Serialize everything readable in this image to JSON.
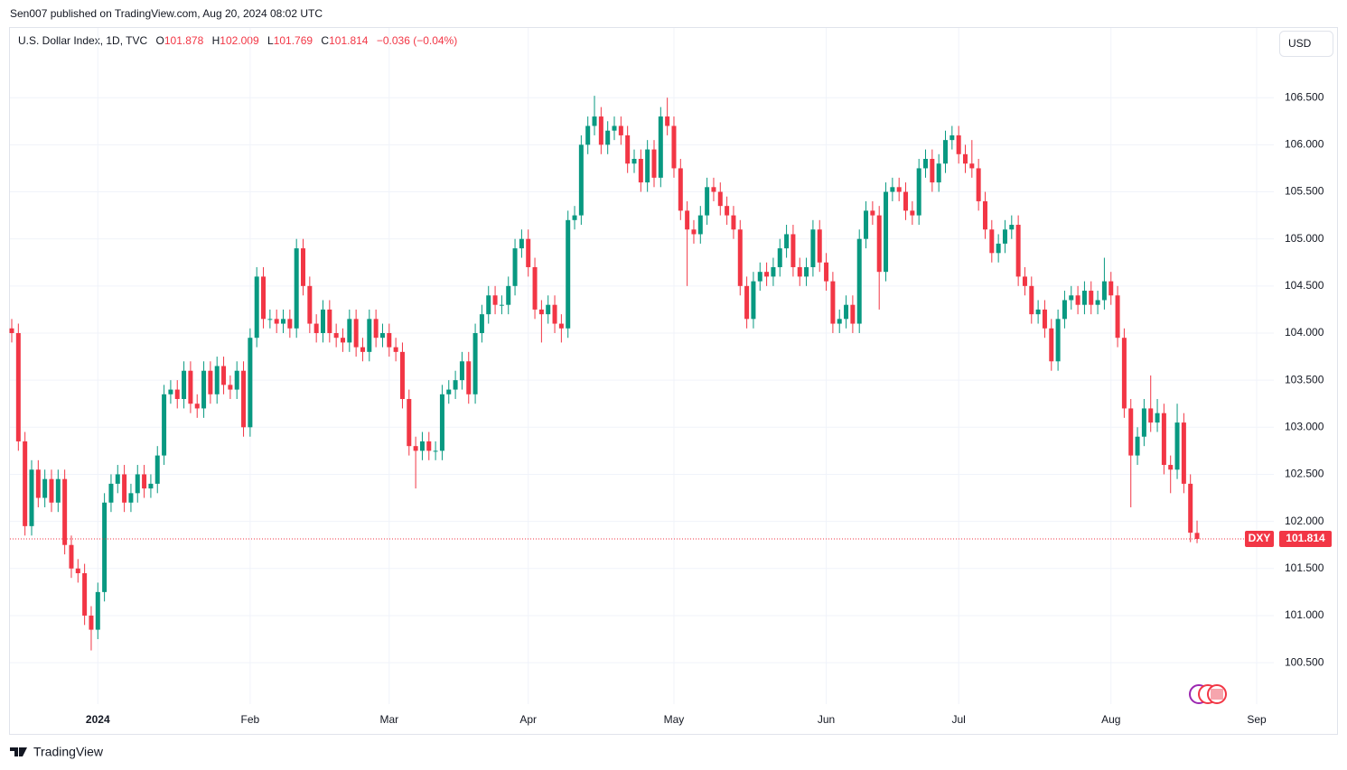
{
  "page": {
    "published": "Sen007 published on TradingView.com, Aug 20, 2024 08:02 UTC",
    "brand": "TradingView",
    "currency": "USD"
  },
  "chart_data": {
    "type": "candlestick",
    "header": {
      "symbol": "U.S. Dollar Index, 1D, TVC",
      "ohlc": [
        {
          "key": "O",
          "value": "101.878"
        },
        {
          "key": "H",
          "value": "102.009"
        },
        {
          "key": "L",
          "value": "101.769"
        },
        {
          "key": "C",
          "value": "101.814"
        }
      ],
      "change": "−0.036 (−0.04%)"
    },
    "last_symbol": "DXY",
    "up_color": "#089981",
    "down_color": "#f23645",
    "grid": true,
    "ylim": [
      100.06,
      107.24
    ],
    "yticks": [
      {
        "value": 100.5,
        "label": "100.500"
      },
      {
        "value": 101,
        "label": "101.000"
      },
      {
        "value": 101.5,
        "label": "101.500"
      },
      {
        "value": 102,
        "label": "102.000"
      },
      {
        "value": 102.5,
        "label": "102.500"
      },
      {
        "value": 103,
        "label": "103.000"
      },
      {
        "value": 103.5,
        "label": "103.500"
      },
      {
        "value": 104,
        "label": "104.000"
      },
      {
        "value": 104.5,
        "label": "104.500"
      },
      {
        "value": 105,
        "label": "105.000"
      },
      {
        "value": 105.5,
        "label": "105.500"
      },
      {
        "value": 106,
        "label": "106.000"
      },
      {
        "value": 106.5,
        "label": "106.500"
      }
    ],
    "categories": [
      null,
      null,
      null,
      null,
      null,
      null,
      null,
      null,
      null,
      null,
      null,
      null,
      null,
      "2024",
      null,
      null,
      null,
      null,
      null,
      null,
      null,
      null,
      null,
      null,
      null,
      null,
      null,
      null,
      null,
      null,
      null,
      null,
      null,
      null,
      null,
      null,
      "Feb",
      null,
      null,
      null,
      null,
      null,
      null,
      null,
      null,
      null,
      null,
      null,
      null,
      null,
      null,
      null,
      null,
      null,
      null,
      null,
      null,
      "Mar",
      null,
      null,
      null,
      null,
      null,
      null,
      null,
      null,
      null,
      null,
      null,
      null,
      null,
      null,
      null,
      null,
      null,
      null,
      null,
      null,
      "Apr",
      null,
      null,
      null,
      null,
      null,
      null,
      null,
      null,
      null,
      null,
      null,
      null,
      null,
      null,
      null,
      null,
      null,
      null,
      null,
      null,
      null,
      "May",
      null,
      null,
      null,
      null,
      null,
      null,
      null,
      null,
      null,
      null,
      null,
      null,
      null,
      null,
      null,
      null,
      null,
      null,
      null,
      null,
      null,
      null,
      "Jun",
      null,
      null,
      null,
      null,
      null,
      null,
      null,
      null,
      null,
      null,
      null,
      null,
      null,
      null,
      null,
      null,
      null,
      null,
      null,
      "Jul",
      null,
      null,
      null,
      null,
      null,
      null,
      null,
      null,
      null,
      null,
      null,
      null,
      null,
      null,
      null,
      null,
      null,
      null,
      null,
      null,
      null,
      null,
      "Aug",
      null,
      null,
      null,
      null,
      null,
      null,
      null,
      null,
      null,
      null,
      null,
      null,
      null,
      null,
      null,
      null,
      null,
      null,
      null,
      null,
      null,
      "Sep"
    ],
    "open": [
      104.05,
      104.0,
      102.85,
      101.95,
      102.55,
      102.25,
      102.45,
      102.2,
      102.45,
      101.75,
      101.5,
      101.45,
      101.0,
      100.85,
      101.25,
      102.2,
      102.4,
      102.5,
      102.2,
      102.3,
      102.5,
      102.35,
      102.4,
      102.7,
      103.35,
      103.4,
      103.3,
      103.6,
      103.25,
      103.2,
      103.6,
      103.35,
      103.65,
      103.45,
      103.4,
      103.6,
      103.0,
      103.95,
      104.6,
      104.15,
      104.15,
      104.1,
      104.15,
      104.05,
      104.9,
      104.5,
      104.1,
      104.0,
      104.25,
      104.0,
      103.95,
      103.9,
      104.15,
      103.85,
      103.8,
      104.15,
      103.95,
      104.0,
      103.85,
      103.8,
      103.3,
      102.8,
      102.75,
      102.85,
      102.75,
      102.75,
      103.35,
      103.4,
      103.5,
      103.7,
      103.35,
      104.0,
      104.2,
      104.4,
      104.3,
      104.3,
      104.5,
      104.9,
      105.0,
      104.7,
      104.25,
      104.2,
      104.3,
      104.1,
      104.05,
      105.2,
      105.25,
      106.0,
      106.2,
      106.3,
      106.0,
      106.15,
      106.2,
      106.1,
      105.8,
      105.85,
      105.6,
      105.95,
      105.65,
      106.3,
      106.2,
      105.75,
      105.3,
      105.1,
      105.05,
      105.25,
      105.55,
      105.5,
      105.35,
      105.25,
      105.1,
      104.5,
      104.15,
      104.55,
      104.65,
      104.6,
      104.7,
      104.9,
      105.05,
      104.7,
      104.6,
      104.7,
      105.1,
      104.75,
      104.55,
      104.1,
      104.15,
      104.3,
      104.1,
      105.0,
      105.3,
      105.25,
      104.65,
      105.5,
      105.55,
      105.5,
      105.3,
      105.25,
      105.75,
      105.85,
      105.6,
      105.8,
      106.05,
      106.1,
      105.9,
      105.8,
      105.75,
      105.4,
      105.1,
      104.85,
      104.95,
      105.1,
      105.15,
      104.6,
      104.5,
      104.2,
      104.25,
      104.05,
      103.7,
      104.15,
      104.35,
      104.4,
      104.3,
      104.45,
      104.3,
      104.35,
      104.55,
      104.4,
      103.95,
      103.2,
      102.7,
      102.9,
      103.2,
      103.05,
      103.15,
      102.6,
      102.55,
      103.05,
      102.4,
      101.878,
      null,
      null,
      null,
      null,
      null,
      null,
      null,
      null,
      null
    ],
    "high": [
      104.15,
      104.1,
      102.95,
      102.65,
      102.65,
      102.55,
      102.55,
      102.55,
      102.55,
      101.85,
      101.6,
      101.55,
      101.1,
      101.35,
      102.3,
      102.5,
      102.6,
      102.6,
      102.4,
      102.6,
      102.6,
      102.5,
      102.8,
      103.45,
      103.5,
      103.5,
      103.7,
      103.7,
      103.35,
      103.7,
      103.7,
      103.75,
      103.75,
      103.55,
      103.7,
      103.7,
      104.05,
      104.7,
      104.7,
      104.25,
      104.25,
      104.25,
      104.25,
      105.0,
      105.0,
      104.6,
      104.2,
      104.35,
      104.35,
      104.1,
      104.05,
      104.25,
      104.25,
      103.95,
      104.25,
      104.25,
      104.1,
      104.1,
      103.95,
      103.9,
      103.4,
      102.9,
      102.95,
      102.95,
      102.85,
      103.45,
      103.5,
      103.6,
      103.8,
      103.8,
      104.1,
      104.3,
      104.5,
      104.5,
      104.4,
      104.6,
      105.0,
      105.1,
      105.1,
      104.8,
      104.35,
      104.4,
      104.4,
      104.2,
      105.3,
      105.35,
      106.1,
      106.3,
      106.52,
      106.4,
      106.25,
      106.3,
      106.3,
      106.2,
      105.95,
      105.95,
      106.05,
      106.05,
      106.4,
      106.5,
      106.3,
      105.85,
      105.4,
      105.2,
      105.35,
      105.65,
      105.65,
      105.6,
      105.45,
      105.35,
      105.2,
      104.6,
      104.65,
      104.75,
      104.75,
      104.8,
      105.0,
      105.15,
      105.15,
      104.8,
      104.8,
      105.2,
      105.2,
      104.85,
      104.65,
      104.25,
      104.4,
      104.4,
      105.1,
      105.4,
      105.4,
      105.35,
      105.6,
      105.65,
      105.65,
      105.6,
      105.4,
      105.85,
      105.95,
      105.95,
      105.9,
      106.15,
      106.2,
      106.2,
      106.0,
      106.05,
      105.85,
      105.5,
      105.2,
      105.05,
      105.2,
      105.25,
      105.25,
      104.7,
      104.6,
      104.35,
      104.35,
      104.15,
      104.25,
      104.45,
      104.5,
      104.5,
      104.55,
      104.55,
      104.45,
      104.8,
      104.65,
      104.5,
      104.05,
      103.3,
      103.0,
      103.3,
      103.55,
      103.3,
      103.25,
      102.7,
      103.25,
      103.15,
      102.5,
      102.009,
      null,
      null,
      null,
      null,
      null,
      null,
      null,
      null,
      null
    ],
    "low": [
      103.9,
      102.75,
      101.85,
      101.85,
      102.15,
      102.15,
      102.1,
      102.1,
      101.65,
      101.4,
      101.35,
      100.9,
      100.63,
      100.75,
      101.15,
      102.1,
      102.3,
      102.1,
      102.1,
      102.2,
      102.25,
      102.25,
      102.3,
      102.6,
      103.25,
      103.2,
      103.2,
      103.15,
      103.1,
      103.1,
      103.25,
      103.25,
      103.35,
      103.3,
      103.3,
      102.9,
      102.9,
      103.85,
      104.05,
      104.05,
      104.0,
      104.0,
      103.95,
      103.95,
      104.4,
      104.0,
      103.9,
      103.9,
      103.9,
      103.85,
      103.8,
      103.8,
      103.75,
      103.7,
      103.7,
      103.85,
      103.85,
      103.75,
      103.7,
      103.2,
      102.7,
      102.35,
      102.65,
      102.65,
      102.65,
      102.65,
      103.25,
      103.3,
      103.4,
      103.25,
      103.25,
      103.9,
      104.1,
      104.2,
      104.2,
      104.2,
      104.4,
      104.8,
      104.6,
      104.15,
      103.9,
      104.1,
      104.0,
      103.9,
      103.95,
      105.1,
      105.15,
      105.9,
      106.1,
      105.9,
      105.9,
      106.05,
      106.0,
      105.7,
      105.7,
      105.5,
      105.5,
      105.55,
      105.55,
      106.1,
      105.65,
      105.2,
      104.5,
      104.95,
      104.95,
      105.15,
      105.4,
      105.25,
      105.15,
      105.0,
      104.4,
      104.05,
      104.05,
      104.45,
      104.5,
      104.5,
      104.6,
      104.8,
      104.6,
      104.5,
      104.5,
      104.6,
      104.65,
      104.45,
      104.0,
      104.0,
      104.05,
      104.0,
      104.0,
      104.9,
      105.15,
      104.25,
      104.55,
      105.4,
      105.4,
      105.2,
      105.15,
      105.15,
      105.65,
      105.5,
      105.5,
      105.7,
      105.95,
      105.8,
      105.7,
      105.65,
      105.3,
      105.0,
      104.75,
      104.75,
      104.85,
      105.0,
      104.5,
      104.4,
      104.1,
      104.1,
      103.95,
      103.6,
      103.6,
      104.05,
      104.25,
      104.2,
      104.2,
      104.2,
      104.2,
      104.25,
      104.3,
      103.85,
      103.1,
      102.15,
      102.6,
      102.8,
      102.95,
      102.95,
      102.5,
      102.3,
      102.45,
      102.3,
      101.78,
      101.769,
      null,
      null,
      null,
      null,
      null,
      null,
      null,
      null,
      null
    ],
    "close": [
      104.0,
      102.85,
      101.95,
      102.55,
      102.25,
      102.45,
      102.2,
      102.45,
      101.75,
      101.5,
      101.45,
      101.0,
      100.85,
      101.25,
      102.2,
      102.4,
      102.5,
      102.2,
      102.3,
      102.5,
      102.35,
      102.4,
      102.7,
      103.35,
      103.4,
      103.3,
      103.6,
      103.25,
      103.2,
      103.6,
      103.35,
      103.65,
      103.45,
      103.4,
      103.6,
      103.0,
      103.95,
      104.6,
      104.15,
      104.15,
      104.1,
      104.15,
      104.05,
      104.9,
      104.5,
      104.1,
      104.0,
      104.25,
      104.0,
      103.95,
      103.9,
      104.15,
      103.85,
      103.8,
      104.15,
      103.95,
      104.0,
      103.85,
      103.8,
      103.3,
      102.8,
      102.75,
      102.85,
      102.75,
      102.75,
      103.35,
      103.4,
      103.5,
      103.7,
      103.35,
      104.0,
      104.2,
      104.4,
      104.3,
      104.3,
      104.5,
      104.9,
      105.0,
      104.7,
      104.25,
      104.2,
      104.3,
      104.1,
      104.05,
      105.2,
      105.25,
      106.0,
      106.2,
      106.3,
      106.0,
      106.15,
      106.2,
      106.1,
      105.8,
      105.85,
      105.6,
      105.95,
      105.65,
      106.3,
      106.2,
      105.75,
      105.3,
      105.1,
      105.05,
      105.25,
      105.55,
      105.5,
      105.35,
      105.25,
      105.1,
      104.5,
      104.15,
      104.55,
      104.65,
      104.6,
      104.7,
      104.9,
      105.05,
      104.7,
      104.6,
      104.7,
      105.1,
      104.75,
      104.55,
      104.1,
      104.15,
      104.3,
      104.1,
      105.0,
      105.3,
      105.25,
      104.65,
      105.5,
      105.55,
      105.5,
      105.3,
      105.25,
      105.75,
      105.85,
      105.6,
      105.8,
      106.05,
      106.1,
      105.9,
      105.8,
      105.75,
      105.4,
      105.1,
      104.85,
      104.95,
      105.1,
      105.15,
      104.6,
      104.5,
      104.2,
      104.25,
      104.05,
      103.7,
      104.15,
      104.35,
      104.4,
      104.3,
      104.45,
      104.3,
      104.35,
      104.55,
      104.4,
      103.95,
      103.2,
      102.7,
      102.9,
      103.2,
      103.05,
      103.15,
      102.6,
      102.55,
      103.05,
      102.4,
      101.88,
      101.814,
      null,
      null,
      null,
      null,
      null,
      null,
      null,
      null,
      null
    ]
  }
}
